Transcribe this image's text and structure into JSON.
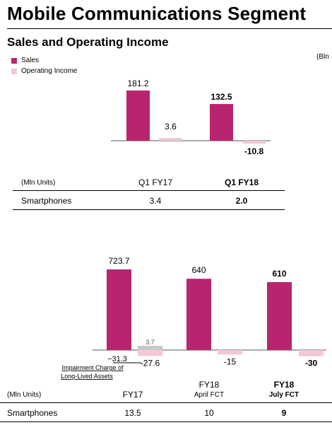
{
  "page": {
    "title": "Mobile Communications Segment",
    "section_title": "Sales and Operating Income",
    "unit_label": "(Bln"
  },
  "legend": {
    "sales": "Sales",
    "operating_income": "Operating Income"
  },
  "colors": {
    "sales": "#b8256e",
    "operating_income": "#f2c7d6",
    "impairment": "#c8c8c8"
  },
  "table1": {
    "units_label": "(Mln Units)",
    "col1": "Q1 FY17",
    "col2": "Q1 FY18",
    "row_label": "Smartphones",
    "val1": "3.4",
    "val2": "2.0"
  },
  "table2": {
    "units_label": "(Mln Units)",
    "col1": "FY17",
    "col2_line1": "FY18",
    "col2_line2": "April FCT",
    "col3_line1": "FY18",
    "col3_line2": "July FCT",
    "row_label": "Smartphones",
    "val1": "13.5",
    "val2": "10",
    "val3": "9"
  },
  "chart_data": [
    {
      "type": "bar",
      "categories": [
        "Q1 FY17",
        "Q1 FY18"
      ],
      "series": [
        {
          "name": "Sales",
          "values": [
            181.2,
            132.5
          ]
        },
        {
          "name": "Operating Income",
          "values": [
            3.6,
            -10.8
          ]
        }
      ],
      "data_labels": {
        "sales": [
          "181.2",
          "132.5"
        ],
        "operating_income": [
          "3.6",
          "-10.8"
        ]
      },
      "bold_category_index": 1
    },
    {
      "type": "bar",
      "categories": [
        "FY17",
        "FY18 April FCT",
        "FY18 July FCT"
      ],
      "series": [
        {
          "name": "Sales",
          "values": [
            723.7,
            640,
            610
          ]
        },
        {
          "name": "Operating Income",
          "values": [
            -27.6,
            -15,
            -30
          ]
        }
      ],
      "data_labels": {
        "sales": [
          "723.7",
          "640",
          "610"
        ],
        "operating_income": [
          "-27.6",
          "-15",
          "-30"
        ]
      },
      "bold_category_index": 2,
      "breakdown": {
        "positive_part": 3.7,
        "positive_label": "3.7",
        "impairment_value": -31.3,
        "impairment_label": "−31.3",
        "annotation_line1": "Impairment Charge of",
        "annotation_line2": "Long-Lived Assets"
      }
    }
  ]
}
